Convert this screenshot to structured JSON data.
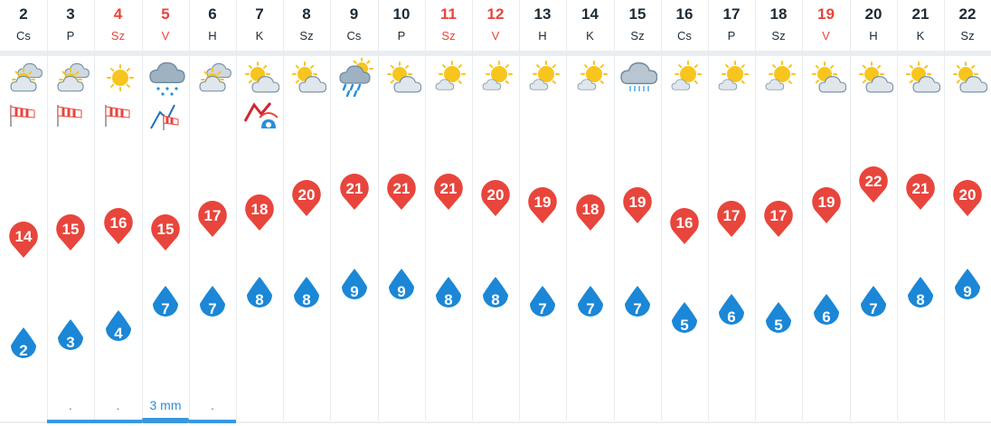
{
  "colors": {
    "max_pin": "#e8453c",
    "min_pin": "#1b87d6",
    "weekend_text": "#e8453c",
    "precip_text": "#2a8fd8"
  },
  "days": [
    {
      "num": "2",
      "abbr": "Cs",
      "weekend": false,
      "weather": "partly-cloudy-sun-icon",
      "wind": "windsock-icon",
      "max": "14",
      "min": "2",
      "precip": ""
    },
    {
      "num": "3",
      "abbr": "P",
      "weekend": false,
      "weather": "partly-cloudy-sun-icon",
      "wind": "windsock-icon",
      "max": "15",
      "min": "3",
      "precip": ".",
      "precip_bar": true
    },
    {
      "num": "4",
      "abbr": "Sz",
      "weekend": true,
      "weather": "sun-icon",
      "wind": "windsock-icon",
      "max": "16",
      "min": "4",
      "precip": ".",
      "precip_bar": true
    },
    {
      "num": "5",
      "abbr": "V",
      "weekend": true,
      "weather": "cloud-rain-icon",
      "wind": "storm-windsock-icon",
      "max": "15",
      "min": "7",
      "precip": "3 mm",
      "precip_bar": true,
      "precip_thick": true
    },
    {
      "num": "6",
      "abbr": "H",
      "weekend": false,
      "weather": "partly-cloudy-sun-icon",
      "wind": "",
      "max": "17",
      "min": "7",
      "precip": ".",
      "precip_bar": true
    },
    {
      "num": "7",
      "abbr": "K",
      "weekend": false,
      "weather": "sun-cloud-icon",
      "wind": "storm-warning-icon",
      "max": "18",
      "min": "8",
      "precip": ""
    },
    {
      "num": "8",
      "abbr": "Sz",
      "weekend": false,
      "weather": "sun-cloud-icon",
      "wind": "",
      "max": "20",
      "min": "8",
      "precip": ""
    },
    {
      "num": "9",
      "abbr": "Cs",
      "weekend": false,
      "weather": "sun-cloud-rain-icon",
      "wind": "",
      "max": "21",
      "min": "9",
      "precip": ""
    },
    {
      "num": "10",
      "abbr": "P",
      "weekend": false,
      "weather": "sun-cloud-icon",
      "wind": "",
      "max": "21",
      "min": "9",
      "precip": ""
    },
    {
      "num": "11",
      "abbr": "Sz",
      "weekend": true,
      "weather": "sun-small-cloud-icon",
      "wind": "",
      "max": "21",
      "min": "8",
      "precip": ""
    },
    {
      "num": "12",
      "abbr": "V",
      "weekend": true,
      "weather": "sun-small-cloud-icon",
      "wind": "",
      "max": "20",
      "min": "8",
      "precip": ""
    },
    {
      "num": "13",
      "abbr": "H",
      "weekend": false,
      "weather": "sun-small-cloud-icon",
      "wind": "",
      "max": "19",
      "min": "7",
      "precip": ""
    },
    {
      "num": "14",
      "abbr": "K",
      "weekend": false,
      "weather": "sun-small-cloud-icon",
      "wind": "",
      "max": "18",
      "min": "7",
      "precip": ""
    },
    {
      "num": "15",
      "abbr": "Sz",
      "weekend": false,
      "weather": "cloud-drizzle-icon",
      "wind": "",
      "max": "19",
      "min": "7",
      "precip": ""
    },
    {
      "num": "16",
      "abbr": "Cs",
      "weekend": false,
      "weather": "sun-small-cloud-icon",
      "wind": "",
      "max": "16",
      "min": "5",
      "precip": ""
    },
    {
      "num": "17",
      "abbr": "P",
      "weekend": false,
      "weather": "sun-small-cloud-icon",
      "wind": "",
      "max": "17",
      "min": "6",
      "precip": ""
    },
    {
      "num": "18",
      "abbr": "Sz",
      "weekend": false,
      "weather": "sun-small-cloud-icon",
      "wind": "",
      "max": "17",
      "min": "5",
      "precip": ""
    },
    {
      "num": "19",
      "abbr": "V",
      "weekend": true,
      "weather": "sun-cloud-icon",
      "wind": "",
      "max": "19",
      "min": "6",
      "precip": ""
    },
    {
      "num": "20",
      "abbr": "H",
      "weekend": false,
      "weather": "sun-cloud-icon",
      "wind": "",
      "max": "22",
      "min": "7",
      "precip": ""
    },
    {
      "num": "21",
      "abbr": "K",
      "weekend": false,
      "weather": "sun-cloud-icon",
      "wind": "",
      "max": "21",
      "min": "8",
      "precip": ""
    },
    {
      "num": "22",
      "abbr": "Sz",
      "weekend": false,
      "weather": "sun-cloud-icon",
      "wind": "",
      "max": "20",
      "min": "9",
      "precip": ""
    }
  ]
}
